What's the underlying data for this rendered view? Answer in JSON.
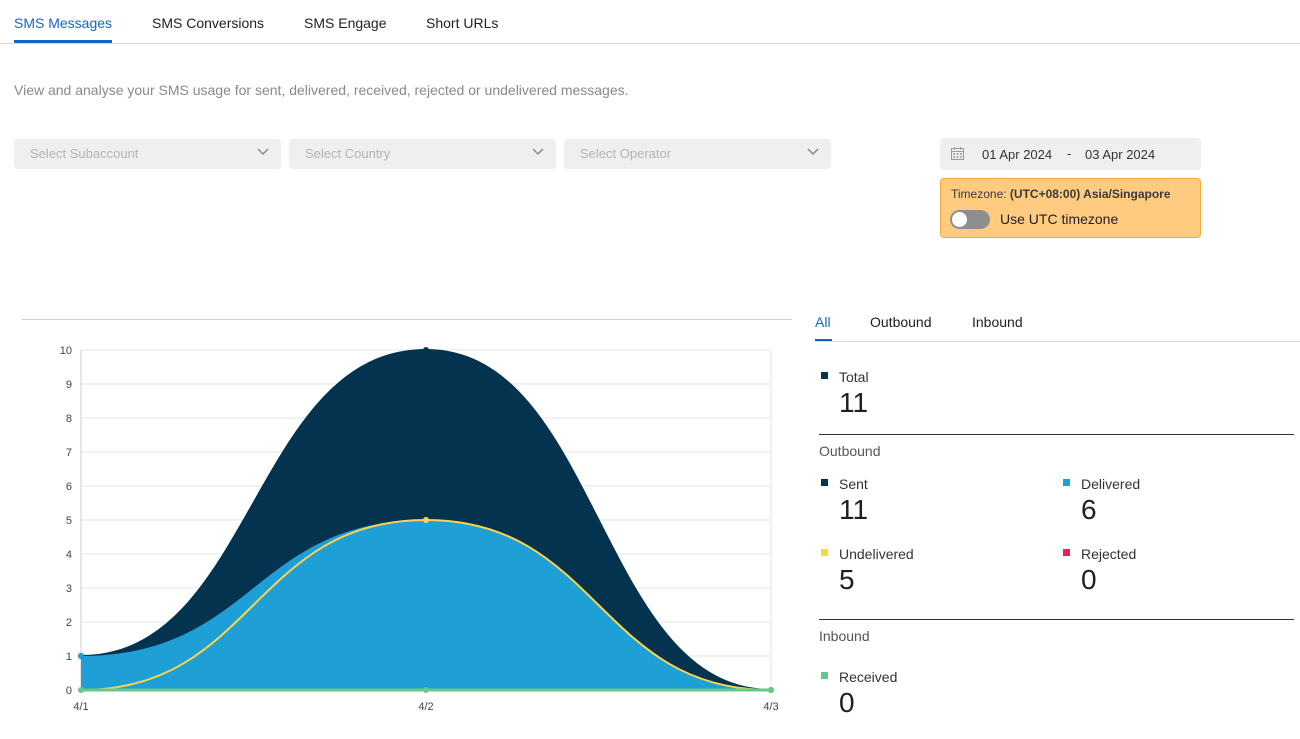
{
  "tabs": [
    {
      "label": "SMS Messages",
      "active": true
    },
    {
      "label": "SMS Conversions",
      "active": false
    },
    {
      "label": "SMS Engage",
      "active": false
    },
    {
      "label": "Short URLs",
      "active": false
    }
  ],
  "description": "View and analyse your SMS usage for sent, delivered, received, rejected or undelivered messages.",
  "filters": {
    "subaccount_placeholder": "Select Subaccount",
    "country_placeholder": "Select Country",
    "operator_placeholder": "Select Operator"
  },
  "date_range": {
    "start": "01 Apr 2024",
    "separator": "-",
    "end": "03 Apr 2024"
  },
  "timezone": {
    "prefix": "Timezone: ",
    "value": "(UTC+08:00) Asia/Singapore",
    "toggle_label": "Use UTC timezone",
    "toggle_on": false
  },
  "stats_tabs": [
    {
      "label": "All",
      "active": true
    },
    {
      "label": "Outbound",
      "active": false
    },
    {
      "label": "Inbound",
      "active": false
    }
  ],
  "stats": {
    "total": {
      "label": "Total",
      "value": "11",
      "color": "#03334f"
    },
    "outbound_title": "Outbound",
    "sent": {
      "label": "Sent",
      "value": "11",
      "color": "#03334f"
    },
    "delivered": {
      "label": "Delivered",
      "value": "6",
      "color": "#1e9fd6"
    },
    "undelivered": {
      "label": "Undelivered",
      "value": "5",
      "color": "#fcd34a"
    },
    "rejected": {
      "label": "Rejected",
      "value": "0",
      "color": "#e8244f"
    },
    "inbound_title": "Inbound",
    "received": {
      "label": "Received",
      "value": "0",
      "color": "#64c98c"
    }
  },
  "chart_data": {
    "type": "area",
    "x": [
      "4/1",
      "4/2",
      "4/3"
    ],
    "ylim": [
      0,
      10
    ],
    "yticks": [
      "0",
      "1",
      "2",
      "3",
      "4",
      "5",
      "6",
      "7",
      "8",
      "9",
      "10"
    ],
    "grid": true,
    "series": [
      {
        "name": "Sent",
        "values": [
          1,
          10,
          0
        ],
        "color": "#03334f"
      },
      {
        "name": "Delivered",
        "values": [
          1,
          5,
          0
        ],
        "color": "#1e9fd6"
      },
      {
        "name": "Undelivered",
        "values": [
          0,
          5,
          0
        ],
        "color": "#fcd34a"
      },
      {
        "name": "Received",
        "values": [
          0,
          0,
          0
        ],
        "color": "#64c98c"
      }
    ]
  }
}
